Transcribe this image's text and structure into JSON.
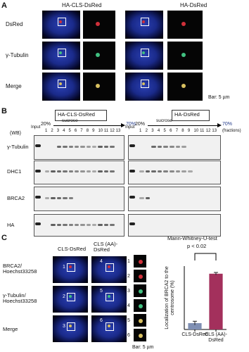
{
  "panel_a": {
    "label": "A",
    "columns": [
      "HA-CLS-DsRed",
      "HA-DsRed"
    ],
    "rows": [
      "DsRed",
      "γ-Tubulin",
      "Merge"
    ],
    "scale_bar": "Bar: 5 µm"
  },
  "panel_b": {
    "label": "B",
    "blots": [
      "HA-CLS-DsRed",
      "HA-DsRed"
    ],
    "method": "(WB)",
    "input": "Input",
    "start": "20%",
    "gradient": "sucrose",
    "end": "70%",
    "fractions": [
      "1",
      "2",
      "3",
      "4",
      "5",
      "6",
      "7",
      "8",
      "9",
      "10",
      "11",
      "12",
      "13"
    ],
    "fractions_label": "(fractions)",
    "rows": [
      "γ-Tubulin",
      "DHC1",
      "BRCA2",
      "HA"
    ]
  },
  "panel_c": {
    "label": "C",
    "columns": [
      "CLS-DsRed",
      "CLS (AA)-DsRed"
    ],
    "rows": [
      "BRCA2/ Hoechst33258",
      "γ-Tubulin/ Hoechst33258",
      "Merge"
    ],
    "insets": [
      "1",
      "2",
      "3",
      "4",
      "5",
      "6"
    ],
    "scale_bar": "Bar: 5 µm"
  },
  "chart_data": {
    "type": "bar",
    "title": "Mann-Whitney-U-test",
    "annotation": "p < 0.02",
    "y_label": "Localization of BRCA2 to the centrosome (%)",
    "categories": [
      "CLS-DsRed",
      "CLS (AA)-DsRed"
    ],
    "values": [
      10,
      88
    ],
    "errors": [
      3,
      2
    ],
    "colors": [
      "#7f8fb3",
      "#a3305c"
    ],
    "ylim": [
      0,
      100
    ]
  }
}
